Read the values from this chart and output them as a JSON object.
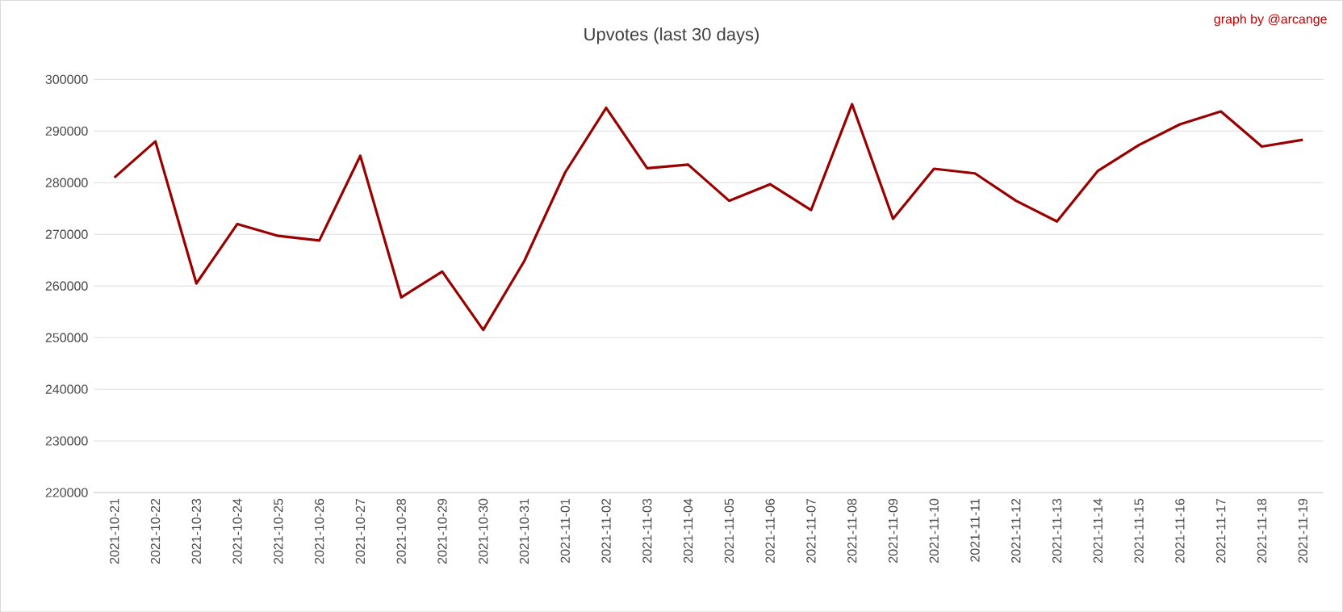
{
  "chart_data": {
    "type": "line",
    "title": "Upvotes (last 30 days)",
    "annotations": [
      "graph by @arcange"
    ],
    "categories": [
      "2021-10-21",
      "2021-10-22",
      "2021-10-23",
      "2021-10-24",
      "2021-10-25",
      "2021-10-26",
      "2021-10-27",
      "2021-10-28",
      "2021-10-29",
      "2021-10-30",
      "2021-10-31",
      "2021-11-01",
      "2021-11-02",
      "2021-11-03",
      "2021-11-04",
      "2021-11-05",
      "2021-11-06",
      "2021-11-07",
      "2021-11-08",
      "2021-11-09",
      "2021-11-10",
      "2021-11-11",
      "2021-11-12",
      "2021-11-13",
      "2021-11-14",
      "2021-11-15",
      "2021-11-16",
      "2021-11-17",
      "2021-11-18",
      "2021-11-19"
    ],
    "values": [
      281000,
      288000,
      260500,
      272000,
      269700,
      268800,
      285200,
      257800,
      262800,
      251500,
      264800,
      282000,
      294500,
      282800,
      283500,
      276500,
      279700,
      274700,
      295200,
      273000,
      282700,
      281800,
      276500,
      272500,
      282300,
      287300,
      291300,
      293800,
      287000,
      288300
    ],
    "color": "#990000",
    "ylim": [
      220000,
      300000
    ],
    "yticks": [
      220000,
      230000,
      240000,
      250000,
      260000,
      270000,
      280000,
      290000,
      300000
    ],
    "grid": "y",
    "marker": "none",
    "line_style": "solid"
  }
}
